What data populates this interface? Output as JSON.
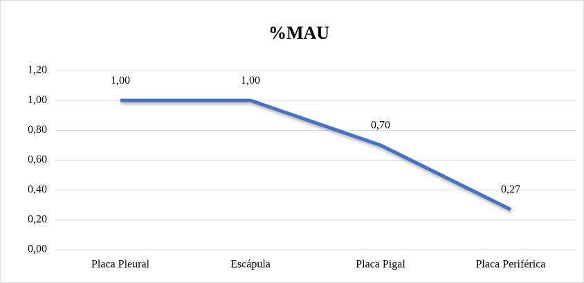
{
  "chart_data": {
    "type": "line",
    "title": "%MAU",
    "categories": [
      "Placa Pleural",
      "Escápula",
      "Placa Pigal",
      "Placa Periférica"
    ],
    "series": [
      {
        "name": "%MAU",
        "color": "#4472c4",
        "values": [
          1.0,
          1.0,
          0.7,
          0.27
        ],
        "value_labels": [
          "1,00",
          "1,00",
          "0,70",
          "0,27"
        ]
      }
    ],
    "ylim": [
      0,
      1.2
    ],
    "yticks": [
      {
        "value": 0,
        "label": "0,00"
      },
      {
        "value": 0.2,
        "label": "0,20"
      },
      {
        "value": 0.4,
        "label": "0,40"
      },
      {
        "value": 0.6,
        "label": "0,60"
      },
      {
        "value": 0.8,
        "label": "0,80"
      },
      {
        "value": 1.0,
        "label": "1,00"
      },
      {
        "value": 1.2,
        "label": "1,20"
      }
    ],
    "grid": true
  }
}
